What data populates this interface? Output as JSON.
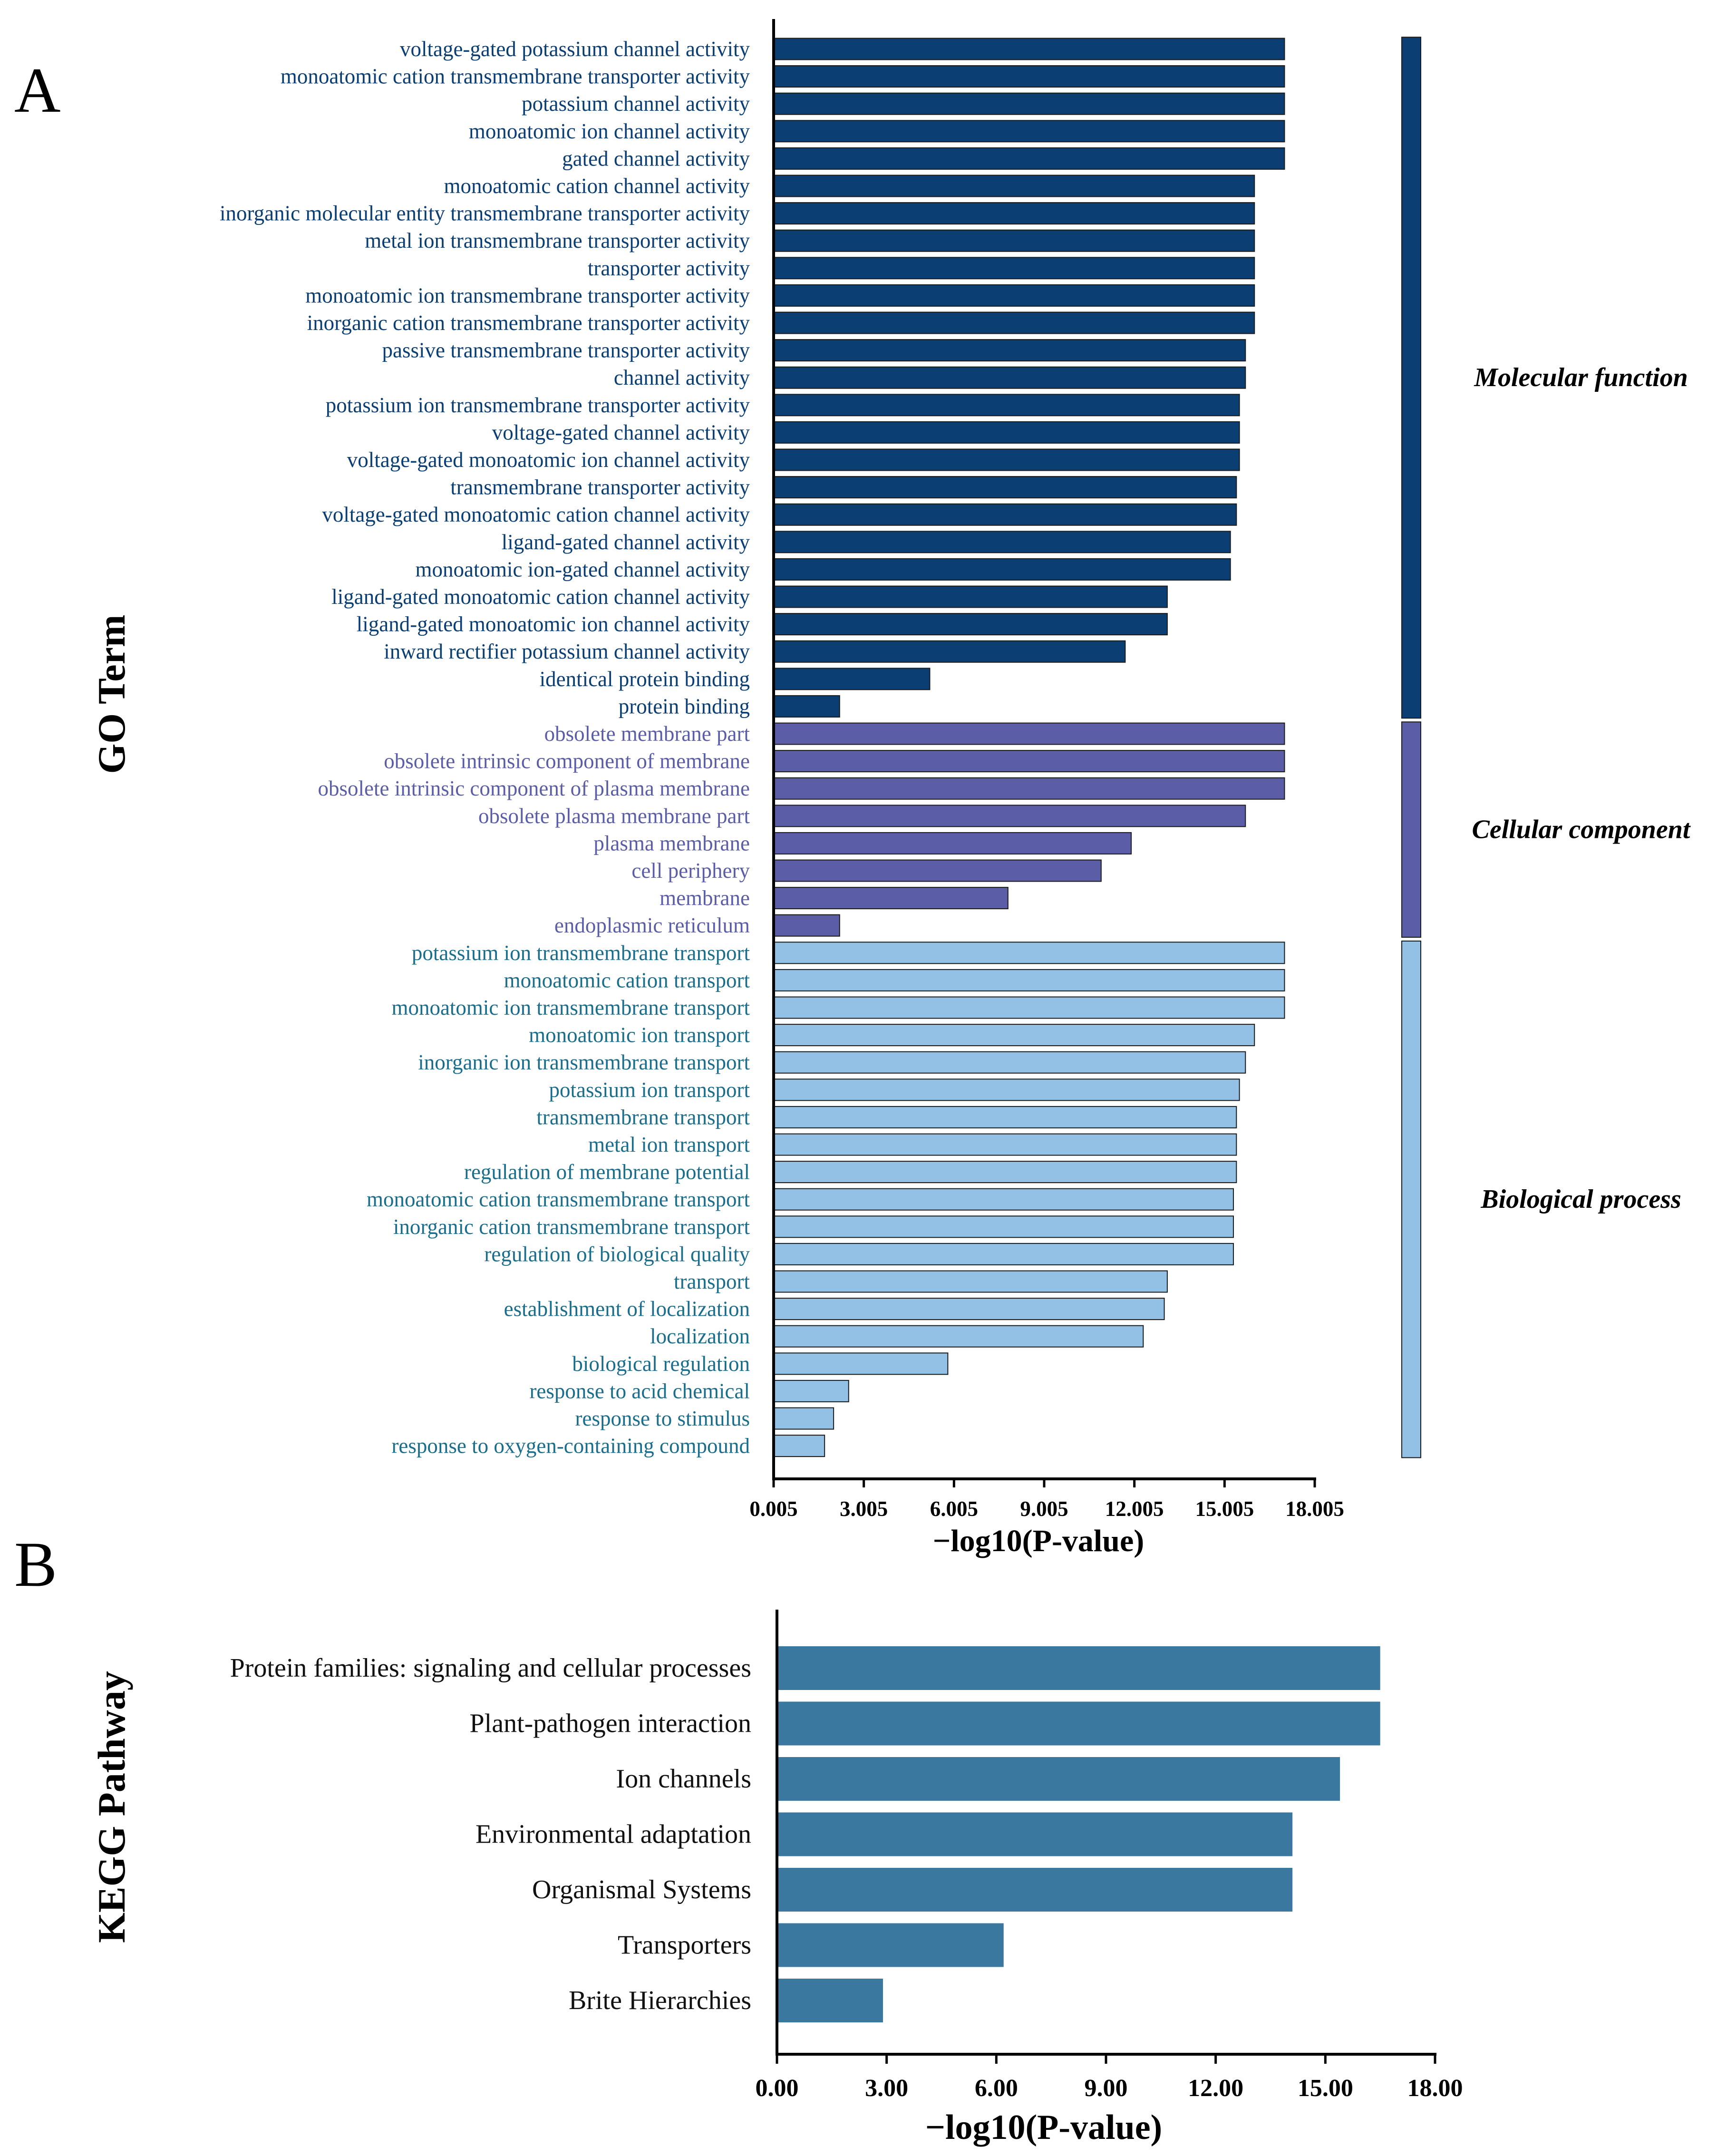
{
  "chart_data": [
    {
      "panel_label": "A",
      "type": "bar",
      "orientation": "horizontal",
      "ylabel": "GO Term",
      "xlabel": "−log10(P-value)",
      "xlim": [
        0.005,
        18.005
      ],
      "xticks": [
        "0.005",
        "3.005",
        "6.005",
        "9.005",
        "12.005",
        "15.005",
        "18.005"
      ],
      "groups": [
        {
          "name": "Molecular function",
          "color": "#0b3e73",
          "label_color": "#0b3e73",
          "categories": [
            "voltage-gated potassium channel activity",
            "monoatomic cation transmembrane transporter activity",
            "potassium channel activity",
            "monoatomic ion channel activity",
            "gated channel activity",
            "monoatomic cation channel activity",
            "inorganic molecular entity transmembrane transporter activity",
            "metal ion transmembrane transporter activity",
            "transporter activity",
            "monoatomic ion transmembrane transporter activity",
            "inorganic cation transmembrane transporter activity",
            "passive transmembrane transporter activity",
            "channel activity",
            "potassium ion transmembrane transporter activity",
            "voltage-gated channel activity",
            "voltage-gated monoatomic ion channel activity",
            "transmembrane transporter activity",
            "voltage-gated monoatomic cation channel activity",
            "ligand-gated channel activity",
            "monoatomic ion-gated channel activity",
            "ligand-gated monoatomic cation channel activity",
            "ligand-gated monoatomic ion channel activity",
            "inward rectifier potassium channel activity",
            "identical protein binding",
            "protein binding"
          ],
          "values": [
            17.0,
            17.0,
            17.0,
            17.0,
            17.0,
            16.0,
            16.0,
            16.0,
            16.0,
            16.0,
            16.0,
            15.7,
            15.7,
            15.5,
            15.5,
            15.5,
            15.4,
            15.4,
            15.2,
            15.2,
            13.1,
            13.1,
            11.7,
            5.2,
            2.2
          ]
        },
        {
          "name": "Cellular component",
          "color": "#5b5ea6",
          "label_color": "#5b5ea6",
          "categories": [
            "obsolete membrane part",
            "obsolete intrinsic component of membrane",
            "obsolete intrinsic component of plasma membrane",
            "obsolete plasma membrane part",
            "plasma membrane",
            "cell periphery",
            "membrane",
            "endoplasmic reticulum"
          ],
          "values": [
            17.0,
            17.0,
            17.0,
            15.7,
            11.9,
            10.9,
            7.8,
            2.2
          ]
        },
        {
          "name": "Biological process",
          "color": "#92c1e5",
          "label_color": "#1a6e8c",
          "categories": [
            "potassium ion transmembrane transport",
            "monoatomic cation transport",
            "monoatomic ion transmembrane transport",
            "monoatomic ion transport",
            "inorganic ion transmembrane transport",
            "potassium ion transport",
            "transmembrane transport",
            "metal ion transport",
            "regulation of membrane potential",
            "monoatomic cation transmembrane transport",
            "inorganic cation transmembrane transport",
            "regulation of biological quality",
            "transport",
            "establishment of localization",
            "localization",
            "biological regulation",
            "response to acid chemical",
            "response to stimulus",
            "response to oxygen-containing compound"
          ],
          "values": [
            17.0,
            17.0,
            17.0,
            16.0,
            15.7,
            15.5,
            15.4,
            15.4,
            15.4,
            15.3,
            15.3,
            15.3,
            13.1,
            13.0,
            12.3,
            5.8,
            2.5,
            2.0,
            1.7
          ]
        }
      ]
    },
    {
      "panel_label": "B",
      "type": "bar",
      "orientation": "horizontal",
      "ylabel": "KEGG Pathway",
      "xlabel": "−log10(P-value)",
      "xlim": [
        0,
        18
      ],
      "xticks": [
        "0.00",
        "3.00",
        "6.00",
        "9.00",
        "12.00",
        "15.00",
        "18.00"
      ],
      "color": "#3a78a0",
      "categories": [
        "Protein families: signaling and cellular processes",
        "Plant-pathogen interaction",
        "Ion channels",
        "Environmental adaptation",
        "Organismal Systems",
        "Transporters",
        "Brite Hierarchies"
      ],
      "values": [
        16.5,
        16.5,
        15.4,
        14.1,
        14.1,
        6.2,
        2.9
      ]
    }
  ]
}
